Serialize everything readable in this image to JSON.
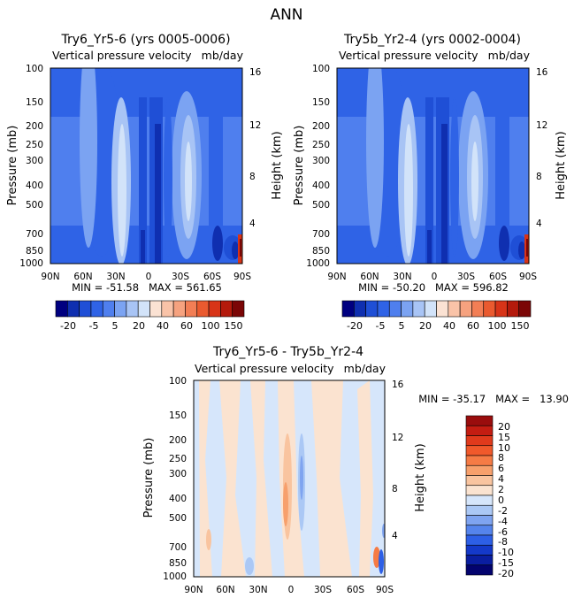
{
  "page_title": "ANN",
  "chart_data": [
    {
      "type": "heatmap",
      "id": "left",
      "title": "Try6_Yr5-6 (yrs 0005-0006)",
      "subtitle_left": "Vertical pressure velocity",
      "subtitle_right": "mb/day",
      "ylabel": "Pressure (mb)",
      "ylabel_right": "Height (km)",
      "x_ticks": [
        "90N",
        "60N",
        "30N",
        "0",
        "30S",
        "60S",
        "90S"
      ],
      "y_ticks": [
        "100",
        "150",
        "200",
        "250",
        "300",
        "400",
        "500",
        "700",
        "850",
        "1000"
      ],
      "y_ticks_right": [
        "16",
        "12",
        "8",
        "4"
      ],
      "stats_text": "MIN = -51.58   MAX = 561.65",
      "min": -51.58,
      "max": 561.65,
      "colorbar_labels": [
        "-20",
        "-5",
        "5",
        "20",
        "40",
        "60",
        "100",
        "150"
      ],
      "colors": [
        "#000080",
        "#0f2fb0",
        "#1f4fd6",
        "#2f63e6",
        "#4f7fee",
        "#7ba3f2",
        "#a8c4f5",
        "#d2e3f9",
        "#fbe2d3",
        "#f9c3a8",
        "#f6a27f",
        "#f27e55",
        "#ea5a2f",
        "#d83418",
        "#b41a0c",
        "#7b0606"
      ]
    },
    {
      "type": "heatmap",
      "id": "right",
      "title": "Try5b_Yr2-4 (yrs 0002-0004)",
      "subtitle_left": "Vertical pressure velocity",
      "subtitle_right": "mb/day",
      "ylabel": "Pressure (mb)",
      "ylabel_right": "Height (km)",
      "x_ticks": [
        "90N",
        "60N",
        "30N",
        "0",
        "30S",
        "60S",
        "90S"
      ],
      "y_ticks": [
        "100",
        "150",
        "200",
        "250",
        "300",
        "400",
        "500",
        "700",
        "850",
        "1000"
      ],
      "y_ticks_right": [
        "16",
        "12",
        "8",
        "4"
      ],
      "stats_text": "MIN = -50.20   MAX = 596.82",
      "min": -50.2,
      "max": 596.82,
      "colorbar_labels": [
        "-20",
        "-5",
        "5",
        "20",
        "40",
        "60",
        "100",
        "150"
      ],
      "colors": [
        "#000080",
        "#0f2fb0",
        "#1f4fd6",
        "#2f63e6",
        "#4f7fee",
        "#7ba3f2",
        "#a8c4f5",
        "#d2e3f9",
        "#fbe2d3",
        "#f9c3a8",
        "#f6a27f",
        "#f27e55",
        "#ea5a2f",
        "#d83418",
        "#b41a0c",
        "#7b0606"
      ]
    },
    {
      "type": "heatmap",
      "id": "diff",
      "title": "Try6_Yr5-6 - Try5b_Yr2-4",
      "subtitle_left": "Vertical pressure velocity",
      "subtitle_right": "mb/day",
      "ylabel": "Pressure (mb)",
      "ylabel_right": "Height (km)",
      "x_ticks": [
        "90N",
        "60N",
        "30N",
        "0",
        "30S",
        "60S",
        "90S"
      ],
      "y_ticks": [
        "100",
        "150",
        "200",
        "250",
        "300",
        "400",
        "500",
        "700",
        "850",
        "1000"
      ],
      "y_ticks_right": [
        "16",
        "12",
        "8",
        "4"
      ],
      "stats_text": "MIN = -35.17   MAX =   13.90",
      "min": -35.17,
      "max": 13.9,
      "colorbar_labels": [
        "20",
        "15",
        "10",
        "8",
        "6",
        "4",
        "2",
        "0",
        "-2",
        "-4",
        "-6",
        "-8",
        "-10",
        "-15",
        "-20"
      ],
      "colors": [
        "#9a0d0d",
        "#c41d12",
        "#e03a1c",
        "#f0592b",
        "#f57b45",
        "#f7a06c",
        "#f9c49f",
        "#fbe3d0",
        "#d6e6fb",
        "#abc8f5",
        "#7fa4f0",
        "#5584ec",
        "#2d5fe6",
        "#1439c9",
        "#0a1ea0",
        "#03036e"
      ]
    }
  ]
}
